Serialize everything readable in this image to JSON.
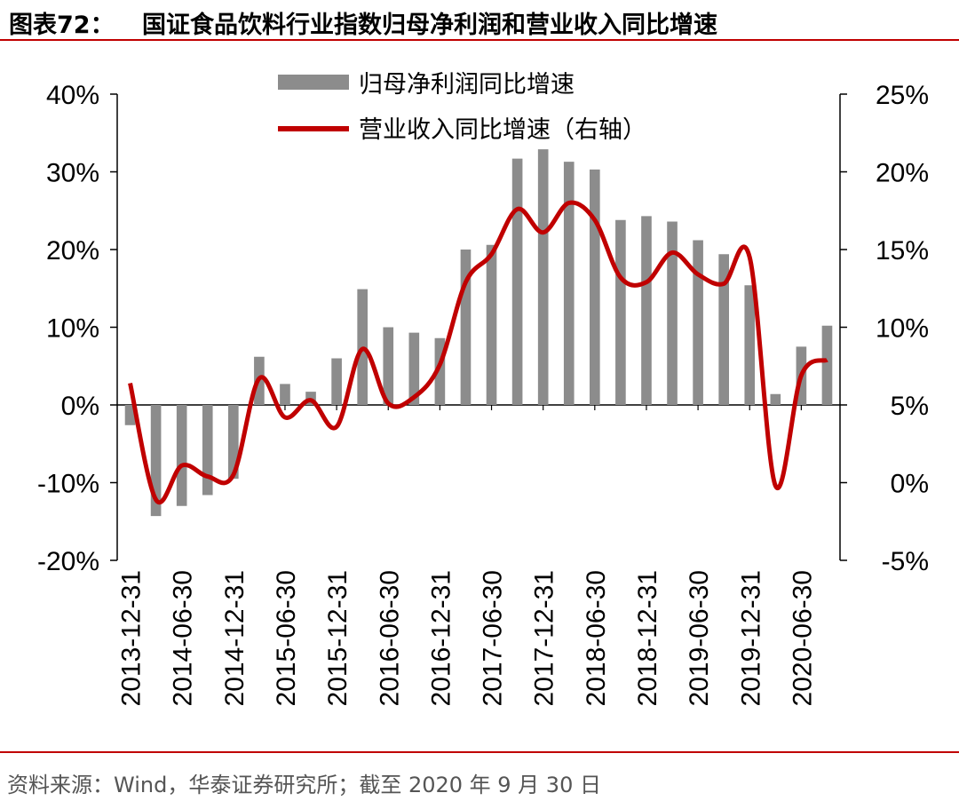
{
  "header": {
    "label": "图表72：",
    "title": "国证食品饮料行业指数归母净利润和营业收入同比增速"
  },
  "footer": {
    "source": "资料来源：Wind，华泰证券研究所；截至 2020 年 9 月 30 日"
  },
  "colors": {
    "bar": "#8c8c8c",
    "line": "#c00000",
    "rule": "#c00000"
  },
  "chart_data": {
    "type": "bar+line",
    "title": "国证食品饮料行业指数归母净利润和营业收入同比增速",
    "categories": [
      "2013-12-31",
      "2014-03-31",
      "2014-06-30",
      "2014-09-30",
      "2014-12-31",
      "2015-03-31",
      "2015-06-30",
      "2015-09-30",
      "2015-12-31",
      "2016-03-31",
      "2016-06-30",
      "2016-09-30",
      "2016-12-31",
      "2017-03-31",
      "2017-06-30",
      "2017-09-30",
      "2017-12-31",
      "2018-03-31",
      "2018-06-30",
      "2018-09-30",
      "2018-12-31",
      "2019-03-31",
      "2019-06-30",
      "2019-09-30",
      "2019-12-31",
      "2020-03-31",
      "2020-06-30",
      "2020-09-30"
    ],
    "x_tick_labels": [
      "2013-12-31",
      "2014-06-30",
      "2014-12-31",
      "2015-06-30",
      "2015-12-31",
      "2016-06-30",
      "2016-12-31",
      "2017-06-30",
      "2017-12-31",
      "2018-06-30",
      "2018-12-31",
      "2019-06-30",
      "2019-12-31",
      "2020-06-30"
    ],
    "x_tick_indices": [
      0,
      2,
      4,
      6,
      8,
      10,
      12,
      14,
      16,
      18,
      20,
      22,
      24,
      26
    ],
    "left_axis": {
      "ylim": [
        -20,
        40
      ],
      "ticks": [
        40,
        30,
        20,
        10,
        0,
        -10,
        -20
      ],
      "tick_labels": [
        "40%",
        "30%",
        "20%",
        "10%",
        "0%",
        "-10%",
        "-20%"
      ]
    },
    "right_axis": {
      "ylim": [
        -5,
        25
      ],
      "ticks": [
        25,
        20,
        15,
        10,
        5,
        0,
        -5
      ],
      "tick_labels": [
        "25%",
        "20%",
        "15%",
        "10%",
        "5%",
        "0%",
        "-5%"
      ]
    },
    "series": [
      {
        "name": "归母净利润同比增速",
        "kind": "bar",
        "axis": "left",
        "values": [
          -2.6,
          -14.3,
          -13.0,
          -11.6,
          -9.5,
          6.2,
          2.7,
          1.7,
          6.0,
          14.9,
          10.0,
          9.3,
          8.6,
          20.0,
          20.6,
          31.7,
          32.9,
          31.3,
          30.3,
          23.8,
          24.3,
          23.6,
          21.2,
          19.4,
          15.4,
          1.4,
          7.5,
          10.2
        ]
      },
      {
        "name": "营业收入同比增速（右轴）",
        "kind": "line",
        "axis": "right",
        "values": [
          6.4,
          -1.1,
          1.1,
          0.4,
          0.5,
          6.7,
          4.2,
          5.3,
          3.6,
          8.6,
          5.1,
          5.5,
          7.6,
          12.9,
          14.7,
          17.6,
          16.1,
          18.0,
          16.9,
          13.2,
          12.9,
          14.8,
          13.4,
          12.8,
          14.5,
          -0.2,
          6.9,
          7.9
        ]
      }
    ],
    "legend": [
      "归母净利润同比增速",
      "营业收入同比增速（右轴）"
    ],
    "legend_position": "top-center"
  }
}
